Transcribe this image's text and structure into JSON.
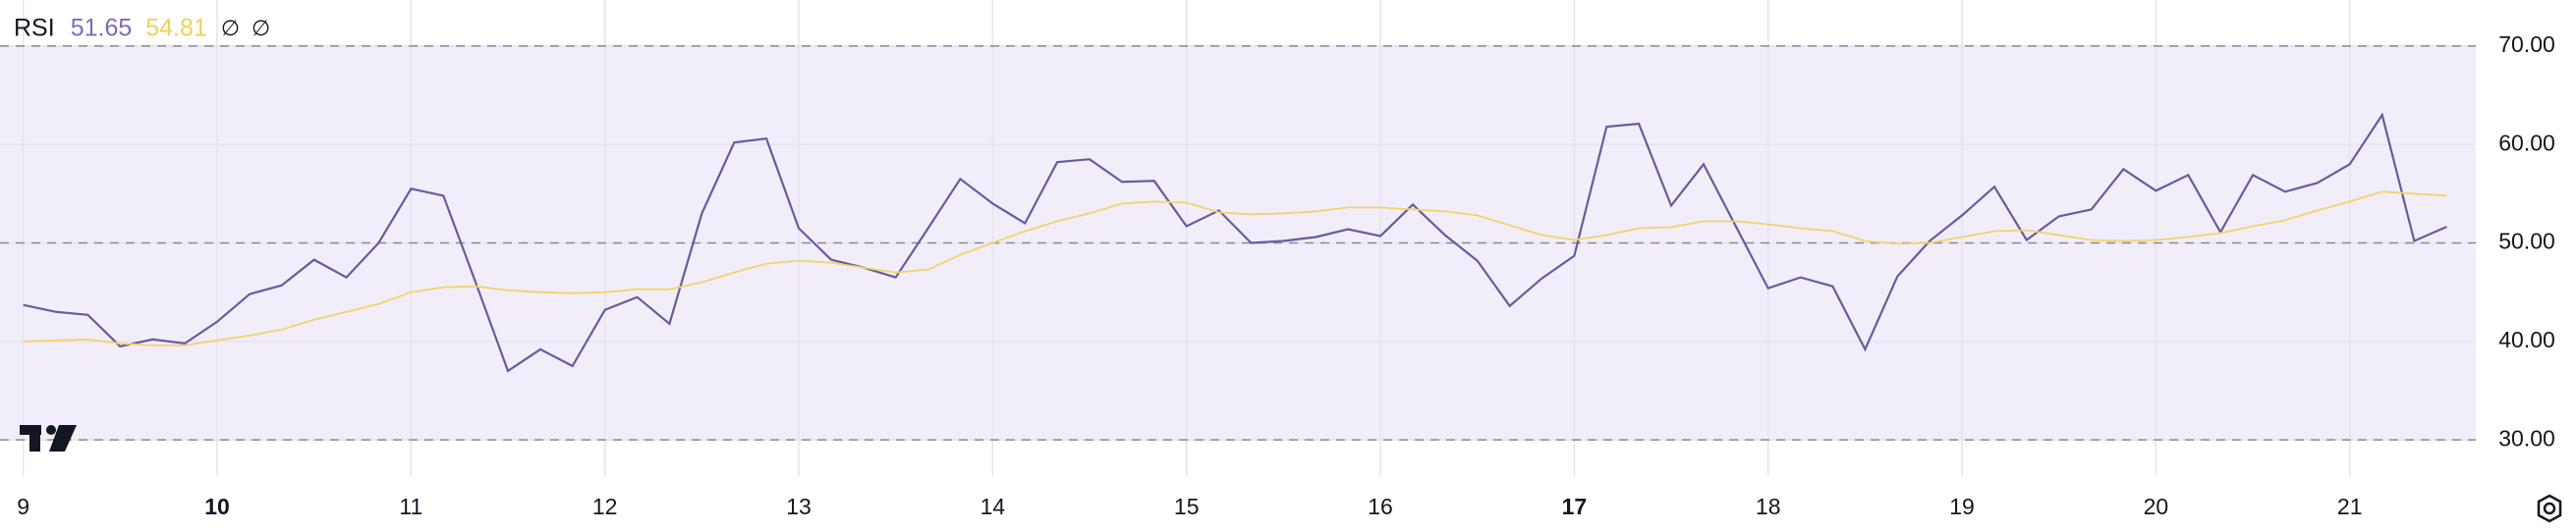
{
  "chart_data": {
    "type": "line",
    "indicator": "RSI",
    "legend_extras": [
      "∅",
      "∅"
    ],
    "x": [
      9,
      9.167,
      9.333,
      9.5,
      9.667,
      9.833,
      10,
      10.167,
      10.333,
      10.5,
      10.667,
      10.833,
      11,
      11.167,
      11.333,
      11.5,
      11.667,
      11.833,
      12,
      12.167,
      12.333,
      12.5,
      12.667,
      12.833,
      13,
      13.167,
      13.333,
      13.5,
      13.667,
      13.833,
      14,
      14.167,
      14.333,
      14.5,
      14.667,
      14.833,
      15,
      15.167,
      15.333,
      15.5,
      15.667,
      15.833,
      16,
      16.167,
      16.333,
      16.5,
      16.667,
      16.833,
      17,
      17.167,
      17.333,
      17.5,
      17.667,
      17.833,
      18,
      18.167,
      18.333,
      18.5,
      18.667,
      18.833,
      19,
      19.167,
      19.333,
      19.5,
      19.667,
      19.833,
      20,
      20.167,
      20.333,
      20.5,
      20.667,
      20.833,
      21,
      21.167,
      21.333,
      21.5
    ],
    "series": [
      {
        "color": "#6a5a9e",
        "last_label": "51.65",
        "label_color": "#7e6bb5",
        "values": [
          43.7,
          43,
          42.7,
          39.5,
          40.2,
          39.8,
          42,
          44.8,
          45.7,
          48.3,
          46.5,
          50,
          55.5,
          54.8,
          46,
          37,
          39.2,
          37.5,
          43.2,
          44.5,
          41.8,
          53,
          60.2,
          60.6,
          51.5,
          48.3,
          47.5,
          46.5,
          51.5,
          56.5,
          54,
          52,
          58.2,
          58.5,
          56.2,
          56.3,
          51.7,
          53.3,
          50,
          50.2,
          50.6,
          51.4,
          50.7,
          53.9,
          50.8,
          48.2,
          43.6,
          46.4,
          48.7,
          61.8,
          62.1,
          53.8,
          58,
          51.7,
          45.4,
          46.5,
          45.6,
          39.2,
          46.6,
          50.2,
          52.8,
          55.7,
          50.3,
          52.7,
          53.4,
          57.5,
          55.3,
          56.9,
          51.1,
          56.9,
          55.2,
          56.1,
          58,
          63,
          50.2,
          51.65
        ]
      },
      {
        "color": "#f5d36a",
        "last_label": "54.81",
        "label_color": "#f2cf5b",
        "values": [
          40.0,
          40.1,
          40.2,
          39.8,
          39.6,
          39.6,
          40.1,
          40.6,
          41.2,
          42.2,
          43.0,
          43.8,
          45.0,
          45.5,
          45.6,
          45.2,
          45.0,
          44.9,
          45.0,
          45.3,
          45.3,
          46.0,
          47.0,
          47.9,
          48.2,
          48.0,
          47.5,
          47.0,
          47.3,
          48.8,
          50.0,
          51.2,
          52.2,
          53.0,
          54.0,
          54.2,
          54.1,
          53.1,
          52.9,
          53.0,
          53.2,
          53.6,
          53.6,
          53.4,
          53.2,
          52.8,
          51.8,
          50.8,
          50.3,
          50.8,
          51.5,
          51.6,
          52.2,
          52.2,
          51.9,
          51.5,
          51.2,
          50.2,
          49.9,
          50.0,
          50.6,
          51.2,
          51.3,
          50.8,
          50.3,
          50.2,
          50.3,
          50.6,
          51.0,
          51.7,
          52.3,
          53.3,
          54.2,
          55.2,
          55.0,
          54.81
        ]
      }
    ],
    "xlim": [
      8.88,
      21.65
    ],
    "xticks": [
      9,
      10,
      11,
      12,
      13,
      14,
      15,
      16,
      17,
      18,
      19,
      20,
      21
    ],
    "xticks_bold": [
      10,
      17
    ],
    "ylim": [
      26.33,
      74.67
    ],
    "yticks": [
      {
        "value": 30,
        "label": "30.00"
      },
      {
        "value": 40,
        "label": "40.00"
      },
      {
        "value": 50,
        "label": "50.00"
      },
      {
        "value": 60,
        "label": "60.00"
      },
      {
        "value": 70,
        "label": "70.00"
      }
    ],
    "levels": [
      30,
      50,
      70
    ],
    "band_color": "#f1eef9",
    "grid": true
  }
}
